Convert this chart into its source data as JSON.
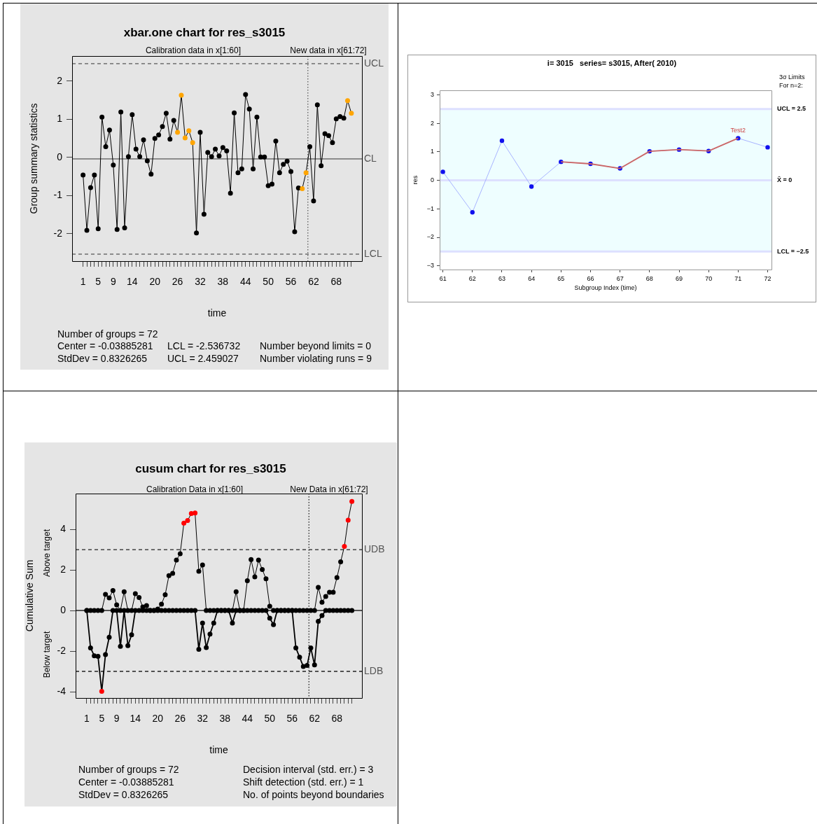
{
  "chart_data": [
    {
      "type": "line",
      "title": "xbar.one chart for res_s3015",
      "xlabel": "time",
      "ylabel": "Group summary statistics",
      "x": [
        1,
        2,
        3,
        4,
        5,
        6,
        7,
        8,
        9,
        10,
        11,
        12,
        13,
        14,
        15,
        16,
        17,
        18,
        19,
        20,
        21,
        22,
        23,
        24,
        25,
        26,
        27,
        28,
        29,
        30,
        31,
        32,
        33,
        34,
        35,
        36,
        37,
        38,
        39,
        40,
        41,
        42,
        43,
        44,
        45,
        46,
        47,
        48,
        49,
        50,
        51,
        52,
        53,
        54,
        55,
        56,
        57,
        58,
        59,
        60,
        61,
        62,
        63,
        64,
        65,
        66,
        67,
        68,
        69,
        70,
        71,
        72
      ],
      "series": [
        {
          "color": "#000000",
          "values": [
            -0.46,
            -1.91,
            -0.79,
            -0.46,
            -1.87,
            1.06,
            0.28,
            0.72,
            -0.2,
            -1.89,
            1.19,
            -1.85,
            0.02,
            1.12,
            0.22,
            0.02,
            0.46,
            -0.09,
            -0.44,
            0.5,
            0.59,
            0.81,
            1.16,
            0.48,
            0.97,
            0.66,
            1.63,
            0.51,
            0.7,
            0.39,
            -1.98,
            0.66,
            -1.49,
            0.13,
            0.02,
            0.22,
            0.04,
            0.26,
            0.17,
            -0.94,
            1.17,
            -0.4,
            -0.3,
            1.65,
            1.27,
            -0.3,
            1.06,
            0.01,
            0.01,
            -0.74,
            -0.7,
            0.43,
            -0.4,
            -0.18,
            -0.1,
            -0.37,
            -1.95,
            -0.8,
            -0.82,
            -0.4,
            0.28,
            -1.14,
            1.38,
            -0.22,
            0.62,
            0.57,
            0.39,
            1.01,
            1.07,
            1.03,
            1.49,
            1.16
          ],
          "colors": [
            "#000000",
            "#000000",
            "#000000",
            "#000000",
            "#000000",
            "#000000",
            "#000000",
            "#000000",
            "#000000",
            "#000000",
            "#000000",
            "#000000",
            "#000000",
            "#000000",
            "#000000",
            "#000000",
            "#000000",
            "#000000",
            "#000000",
            "#000000",
            "#000000",
            "#000000",
            "#000000",
            "#000000",
            "#000000",
            "#ffa500",
            "#ffa500",
            "#ffa500",
            "#ffa500",
            "#ffa500",
            "#000000",
            "#000000",
            "#000000",
            "#000000",
            "#000000",
            "#000000",
            "#000000",
            "#000000",
            "#000000",
            "#000000",
            "#000000",
            "#000000",
            "#000000",
            "#000000",
            "#000000",
            "#000000",
            "#000000",
            "#000000",
            "#000000",
            "#000000",
            "#000000",
            "#000000",
            "#000000",
            "#000000",
            "#000000",
            "#000000",
            "#000000",
            "#000000",
            "#ffa500",
            "#ffa500",
            "#000000",
            "#000000",
            "#000000",
            "#000000",
            "#000000",
            "#000000",
            "#000000",
            "#000000",
            "#000000",
            "#000000",
            "#ffa500",
            "#ffa500"
          ]
        }
      ],
      "xlim": [
        -1.9,
        74.8
      ],
      "xticks": [
        1,
        {
          "value": 2,
          "label": null
        },
        {
          "value": 3,
          "label": null
        },
        {
          "value": 4,
          "label": null
        },
        5,
        {
          "value": 6,
          "label": null
        },
        {
          "value": 7,
          "label": null
        },
        {
          "value": 8,
          "label": null
        },
        9,
        {
          "value": 10,
          "label": null
        },
        {
          "value": 11,
          "label": null
        },
        {
          "value": 12,
          "label": null
        },
        {
          "value": 13,
          "label": null
        },
        14,
        {
          "value": 15,
          "label": null
        },
        {
          "value": 16,
          "label": null
        },
        {
          "value": 17,
          "label": null
        },
        {
          "value": 18,
          "label": null
        },
        {
          "value": 19,
          "label": null
        },
        20,
        {
          "value": 21,
          "label": null
        },
        {
          "value": 22,
          "label": null
        },
        {
          "value": 23,
          "label": null
        },
        {
          "value": 24,
          "label": null
        },
        {
          "value": 25,
          "label": null
        },
        26,
        {
          "value": 27,
          "label": null
        },
        {
          "value": 28,
          "label": null
        },
        {
          "value": 29,
          "label": null
        },
        {
          "value": 30,
          "label": null
        },
        {
          "value": 31,
          "label": null
        },
        32,
        {
          "value": 33,
          "label": null
        },
        {
          "value": 34,
          "label": null
        },
        {
          "value": 35,
          "label": null
        },
        {
          "value": 36,
          "label": null
        },
        {
          "value": 37,
          "label": null
        },
        38,
        {
          "value": 39,
          "label": null
        },
        {
          "value": 40,
          "label": null
        },
        {
          "value": 41,
          "label": null
        },
        {
          "value": 42,
          "label": null
        },
        {
          "value": 43,
          "label": null
        },
        44,
        {
          "value": 45,
          "label": null
        },
        {
          "value": 46,
          "label": null
        },
        {
          "value": 47,
          "label": null
        },
        {
          "value": 48,
          "label": null
        },
        {
          "value": 49,
          "label": null
        },
        50,
        {
          "value": 51,
          "label": null
        },
        {
          "value": 52,
          "label": null
        },
        {
          "value": 53,
          "label": null
        },
        {
          "value": 54,
          "label": null
        },
        {
          "value": 55,
          "label": null
        },
        56,
        {
          "value": 57,
          "label": null
        },
        {
          "value": 58,
          "label": null
        },
        {
          "value": 59,
          "label": null
        },
        {
          "value": 60,
          "label": null
        },
        {
          "value": 61,
          "label": null
        },
        62,
        {
          "value": 63,
          "label": null
        },
        {
          "value": 64,
          "label": null
        },
        {
          "value": 65,
          "label": null
        },
        {
          "value": 66,
          "label": null
        },
        {
          "value": 67,
          "label": null
        },
        68,
        {
          "value": 69,
          "label": null
        },
        {
          "value": 70,
          "label": null
        },
        {
          "value": 71,
          "label": null
        },
        {
          "value": 72,
          "label": null
        }
      ],
      "ylim": [
        -2.72,
        2.66
      ],
      "yticks": [
        -2,
        -1,
        0,
        1,
        2
      ],
      "ref_lines": [
        {
          "axis": "y",
          "value": 2.459027,
          "label": "UCL",
          "line_style": "dashed"
        },
        {
          "axis": "y",
          "value": -0.03885281,
          "label": "CL",
          "line_style": "solid"
        },
        {
          "axis": "y",
          "value": -2.536732,
          "label": "LCL",
          "line_style": "dashed"
        },
        {
          "axis": "x",
          "value": 60.5,
          "line_style": "dotted"
        }
      ],
      "annotations": [
        "Calibration data in x[1:60]",
        "New data in x[61:72]",
        "Number of groups = 72",
        "Center = -0.03885281",
        "StdDev = 0.8326265",
        "LCL = -2.536732",
        "UCL = 2.459027",
        "Number beyond limits = 0",
        "Number violating runs = 9"
      ],
      "marker": "circle",
      "grid": false,
      "legend": false
    },
    {
      "type": "line",
      "title": "i= 3015   series= s3015, After( 2010)",
      "xlabel": "Subgroup Index (time)",
      "ylabel": "res",
      "x": [
        61,
        62,
        63,
        64,
        65,
        66,
        67,
        68,
        69,
        70,
        71,
        72
      ],
      "series": [
        {
          "color": "#a8b4ff",
          "values": [
            0.3,
            -1.12,
            1.39,
            -0.22,
            0.65,
            0.58,
            0.42,
            1.02,
            1.08,
            1.03,
            1.48,
            1.16
          ],
          "colors": [
            "#1010ee",
            "#1010ee",
            "#1010ee",
            "#1010ee",
            "#1010ee",
            "#1010ee",
            "#1010ee",
            "#1010ee",
            "#1010ee",
            "#1010ee",
            "#1010ee",
            "#1010ee"
          ]
        },
        {
          "type": "line",
          "x": [
            65,
            66,
            67,
            68,
            69,
            70,
            71
          ],
          "color": "#cc6666",
          "marker": "none",
          "values": [
            0.65,
            0.58,
            0.42,
            1.02,
            1.08,
            1.03,
            1.48
          ]
        }
      ],
      "xlim": [
        60.89,
        72.13
      ],
      "xticks": [
        61,
        62,
        63,
        64,
        65,
        66,
        67,
        68,
        69,
        70,
        71,
        72
      ],
      "ylim": [
        -3.13,
        3.16
      ],
      "yticks": [
        {
          "value": -3,
          "label": "−3"
        },
        {
          "value": -2,
          "label": "−2"
        },
        {
          "value": -1,
          "label": "−1"
        },
        0,
        1,
        2,
        3
      ],
      "bands": [
        {
          "axis": "y",
          "from": -2.5,
          "to": 2.5,
          "color": "#eefeff"
        }
      ],
      "ref_lines": [
        {
          "axis": "y",
          "value": 2.5,
          "label": "UCL = 2.5",
          "color": "#dde0ff"
        },
        {
          "axis": "y",
          "value": 0,
          "label": "X̄ = 0",
          "color": "#dde0ff"
        },
        {
          "axis": "y",
          "value": -2.5,
          "label": "LCL = −2.5",
          "color": "#dde0ff"
        }
      ],
      "annotations": [
        "3σ Limits",
        "For n=2:",
        {
          "text": "Test2",
          "x": 71,
          "y": 1.48
        }
      ],
      "marker": "circle",
      "grid": false,
      "legend": false
    },
    {
      "type": "line",
      "title": "cusum chart for res_s3015",
      "xlabel": "time",
      "ylabel": "Cumulative Sum",
      "x": [
        1,
        2,
        3,
        4,
        5,
        6,
        7,
        8,
        9,
        10,
        11,
        12,
        13,
        14,
        15,
        16,
        17,
        18,
        19,
        20,
        21,
        22,
        23,
        24,
        25,
        26,
        27,
        28,
        29,
        30,
        31,
        32,
        33,
        34,
        35,
        36,
        37,
        38,
        39,
        40,
        41,
        42,
        43,
        44,
        45,
        46,
        47,
        48,
        49,
        50,
        51,
        52,
        53,
        54,
        55,
        56,
        57,
        58,
        59,
        60,
        61,
        62,
        63,
        64,
        65,
        66,
        67,
        68,
        69,
        70,
        71,
        72
      ],
      "series": [
        {
          "color": "#000000",
          "values": [
            0,
            0,
            0,
            0,
            0,
            0.79,
            0.62,
            0.98,
            0.28,
            0,
            0.92,
            0,
            0,
            0.83,
            0.64,
            0.17,
            0.24,
            0,
            0,
            0.07,
            0.31,
            0.78,
            1.72,
            1.83,
            2.48,
            2.79,
            4.3,
            4.43,
            4.78,
            4.8,
            1.93,
            2.24,
            0,
            0,
            0,
            0,
            0,
            0,
            0,
            0,
            0.92,
            0,
            0,
            1.47,
            2.51,
            1.66,
            2.48,
            2.02,
            1.56,
            0.21,
            0,
            0,
            0,
            0,
            0,
            0,
            0,
            0,
            0,
            0,
            0,
            0,
            1.14,
            0.41,
            0.69,
            0.9,
            0.9,
            1.62,
            2.4,
            3.16,
            4.45,
            5.37
          ],
          "colors": [
            "#000000",
            "#000000",
            "#000000",
            "#000000",
            "#000000",
            "#000000",
            "#000000",
            "#000000",
            "#000000",
            "#000000",
            "#000000",
            "#000000",
            "#000000",
            "#000000",
            "#000000",
            "#000000",
            "#000000",
            "#000000",
            "#000000",
            "#000000",
            "#000000",
            "#000000",
            "#000000",
            "#000000",
            "#000000",
            "#000000",
            "#ff0000",
            "#ff0000",
            "#ff0000",
            "#ff0000",
            "#000000",
            "#000000",
            "#000000",
            "#000000",
            "#000000",
            "#000000",
            "#000000",
            "#000000",
            "#000000",
            "#000000",
            "#000000",
            "#000000",
            "#000000",
            "#000000",
            "#000000",
            "#000000",
            "#000000",
            "#000000",
            "#000000",
            "#000000",
            "#000000",
            "#000000",
            "#000000",
            "#000000",
            "#000000",
            "#000000",
            "#000000",
            "#000000",
            "#000000",
            "#000000",
            "#000000",
            "#000000",
            "#000000",
            "#000000",
            "#000000",
            "#000000",
            "#000000",
            "#000000",
            "#000000",
            "#ff0000",
            "#ff0000",
            "#ff0000"
          ]
        },
        {
          "color": "#000000",
          "values": [
            0,
            -1.84,
            -2.23,
            -2.26,
            -3.98,
            -2.17,
            -1.32,
            0,
            0,
            -1.77,
            0,
            -1.73,
            -1.2,
            0,
            0,
            0,
            0,
            0,
            0,
            0,
            0,
            0,
            0,
            0,
            0,
            0,
            0,
            0,
            0,
            0,
            -1.91,
            -0.62,
            -1.83,
            -1.16,
            -0.62,
            0,
            0,
            0,
            0,
            -0.62,
            0,
            0,
            0,
            0,
            0,
            0,
            0,
            0,
            0,
            -0.38,
            -0.7,
            0,
            0,
            0,
            0,
            0,
            -1.84,
            -2.3,
            -2.76,
            -2.71,
            -1.84,
            -2.68,
            -0.53,
            -0.25,
            0,
            0,
            0,
            0,
            0,
            0,
            0,
            0
          ],
          "colors": [
            "#000000",
            "#000000",
            "#000000",
            "#000000",
            "#ff0000",
            "#000000",
            "#000000",
            "#000000",
            "#000000",
            "#000000",
            "#000000",
            "#000000",
            "#000000",
            "#000000",
            "#000000",
            "#000000",
            "#000000",
            "#000000",
            "#000000",
            "#000000",
            "#000000",
            "#000000",
            "#000000",
            "#000000",
            "#000000",
            "#000000",
            "#000000",
            "#000000",
            "#000000",
            "#000000",
            "#000000",
            "#000000",
            "#000000",
            "#000000",
            "#000000",
            "#000000",
            "#000000",
            "#000000",
            "#000000",
            "#000000",
            "#000000",
            "#000000",
            "#000000",
            "#000000",
            "#000000",
            "#000000",
            "#000000",
            "#000000",
            "#000000",
            "#000000",
            "#000000",
            "#000000",
            "#000000",
            "#000000",
            "#000000",
            "#000000",
            "#000000",
            "#000000",
            "#000000",
            "#000000",
            "#000000",
            "#000000",
            "#000000",
            "#000000",
            "#000000",
            "#000000",
            "#000000",
            "#000000",
            "#000000",
            "#000000",
            "#000000",
            "#000000"
          ]
        }
      ],
      "xlim": [
        -2.0,
        74.7
      ],
      "xticks": [
        1,
        {
          "value": 2,
          "label": null
        },
        {
          "value": 3,
          "label": null
        },
        {
          "value": 4,
          "label": null
        },
        5,
        {
          "value": 6,
          "label": null
        },
        {
          "value": 7,
          "label": null
        },
        {
          "value": 8,
          "label": null
        },
        9,
        {
          "value": 10,
          "label": null
        },
        {
          "value": 11,
          "label": null
        },
        {
          "value": 12,
          "label": null
        },
        {
          "value": 13,
          "label": null
        },
        14,
        {
          "value": 15,
          "label": null
        },
        {
          "value": 16,
          "label": null
        },
        {
          "value": 17,
          "label": null
        },
        {
          "value": 18,
          "label": null
        },
        {
          "value": 19,
          "label": null
        },
        20,
        {
          "value": 21,
          "label": null
        },
        {
          "value": 22,
          "label": null
        },
        {
          "value": 23,
          "label": null
        },
        {
          "value": 24,
          "label": null
        },
        {
          "value": 25,
          "label": null
        },
        26,
        {
          "value": 27,
          "label": null
        },
        {
          "value": 28,
          "label": null
        },
        {
          "value": 29,
          "label": null
        },
        {
          "value": 30,
          "label": null
        },
        {
          "value": 31,
          "label": null
        },
        32,
        {
          "value": 33,
          "label": null
        },
        {
          "value": 34,
          "label": null
        },
        {
          "value": 35,
          "label": null
        },
        {
          "value": 36,
          "label": null
        },
        {
          "value": 37,
          "label": null
        },
        38,
        {
          "value": 39,
          "label": null
        },
        {
          "value": 40,
          "label": null
        },
        {
          "value": 41,
          "label": null
        },
        {
          "value": 42,
          "label": null
        },
        {
          "value": 43,
          "label": null
        },
        44,
        {
          "value": 45,
          "label": null
        },
        {
          "value": 46,
          "label": null
        },
        {
          "value": 47,
          "label": null
        },
        {
          "value": 48,
          "label": null
        },
        {
          "value": 49,
          "label": null
        },
        50,
        {
          "value": 51,
          "label": null
        },
        {
          "value": 52,
          "label": null
        },
        {
          "value": 53,
          "label": null
        },
        {
          "value": 54,
          "label": null
        },
        {
          "value": 55,
          "label": null
        },
        56,
        {
          "value": 57,
          "label": null
        },
        {
          "value": 58,
          "label": null
        },
        {
          "value": 59,
          "label": null
        },
        {
          "value": 60,
          "label": null
        },
        {
          "value": 61,
          "label": null
        },
        62,
        {
          "value": 63,
          "label": null
        },
        {
          "value": 64,
          "label": null
        },
        {
          "value": 65,
          "label": null
        },
        {
          "value": 66,
          "label": null
        },
        {
          "value": 67,
          "label": null
        },
        68,
        {
          "value": 69,
          "label": null
        },
        {
          "value": 70,
          "label": null
        },
        {
          "value": 71,
          "label": null
        },
        {
          "value": 72,
          "label": null
        }
      ],
      "ylim": [
        -4.31,
        5.76
      ],
      "yticks": [
        -4,
        -2,
        0,
        2,
        4
      ],
      "ref_lines": [
        {
          "axis": "y",
          "value": 3,
          "label": "UDB",
          "line_style": "dashed"
        },
        {
          "axis": "y",
          "value": -3,
          "label": "LDB",
          "line_style": "dashed"
        },
        {
          "axis": "y",
          "value": 0,
          "line_style": "solid"
        },
        {
          "axis": "x",
          "value": 60.5,
          "line_style": "dotted"
        }
      ],
      "annotations": [
        "Calibration Data in x[1:60]",
        "New Data in x[61:72]",
        "Above target",
        "Below target",
        "Number of groups = 72",
        "Decision interval (std. err.) = 3",
        "Center = -0.03885281",
        "Shift detection (std. err.) = 1",
        "StdDev = 0.8326265",
        "No. of points beyond boundaries"
      ],
      "marker": "circle",
      "grid": false,
      "legend": false
    }
  ]
}
